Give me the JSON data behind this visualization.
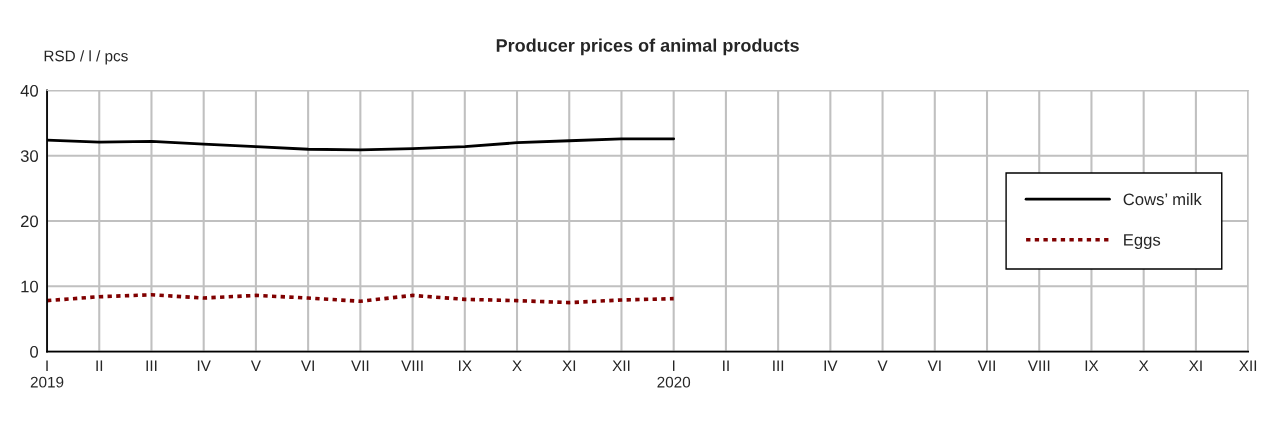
{
  "chart_data": {
    "type": "line",
    "title": "Producer prices of animal products",
    "ylabel": "RSD / l / pcs",
    "categories": [
      "I\n2019",
      "II",
      "III",
      "IV",
      "V",
      "VI",
      "VII",
      "VIII",
      "IX",
      "X",
      "XI",
      "XII",
      "I\n2020",
      "II",
      "III",
      "IV",
      "V",
      "VI",
      "VII",
      "VIII",
      "IX",
      "X",
      "XI",
      "XII"
    ],
    "series": [
      {
        "name": "Cows’ milk",
        "color": "#000000",
        "line_style": "solid",
        "values": [
          32.4,
          32.1,
          32.2,
          31.8,
          31.4,
          31.0,
          30.9,
          31.1,
          31.4,
          32.0,
          32.3,
          32.6,
          32.6,
          null,
          null,
          null,
          null,
          null,
          null,
          null,
          null,
          null,
          null,
          null
        ]
      },
      {
        "name": "Eggs",
        "color": "#800000",
        "line_style": "dotted",
        "values": [
          7.8,
          8.4,
          8.7,
          8.2,
          8.6,
          8.2,
          7.7,
          8.6,
          8.0,
          7.8,
          7.5,
          7.9,
          8.1,
          null,
          null,
          null,
          null,
          null,
          null,
          null,
          null,
          null,
          null,
          null
        ]
      }
    ],
    "ylim": [
      0,
      40
    ],
    "yticks": [
      0,
      10,
      20,
      30,
      40
    ],
    "grid": true,
    "legend": "right",
    "marker": "none"
  }
}
